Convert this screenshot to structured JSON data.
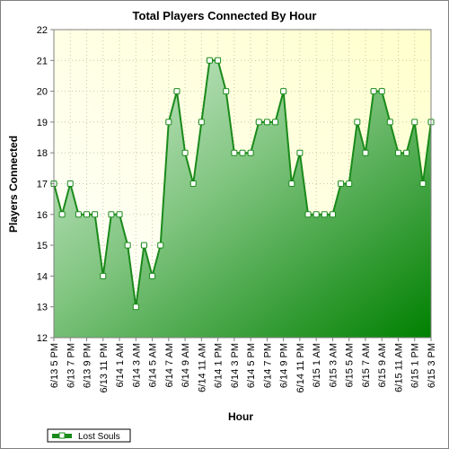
{
  "chart_data": {
    "type": "area",
    "title": "Total Players Connected By Hour",
    "xlabel": "Hour",
    "ylabel": "Players Connected",
    "ylim": [
      12,
      22
    ],
    "yticks": [
      12,
      13,
      14,
      15,
      16,
      17,
      18,
      19,
      20,
      21,
      22
    ],
    "grid": true,
    "legend": "bottom-left",
    "x_tick_labels": [
      "6/13 5 PM",
      "6/13 7 PM",
      "6/13 9 PM",
      "6/13 11 PM",
      "6/14 1 AM",
      "6/14 3 AM",
      "6/14 5 AM",
      "6/14 7 AM",
      "6/14 9 AM",
      "6/14 11 AM",
      "6/14 1 PM",
      "6/14 3 PM",
      "6/14 5 PM",
      "6/14 7 PM",
      "6/14 9 PM",
      "6/14 11 PM",
      "6/15 1 AM",
      "6/15 3 AM",
      "6/15 5 AM",
      "6/15 7 AM",
      "6/15 9 AM",
      "6/15 11 AM",
      "6/15 1 PM",
      "6/15 3 PM"
    ],
    "series": [
      {
        "name": "Lost Souls",
        "color": "#1a8a1a",
        "values": [
          17,
          16,
          17,
          16,
          16,
          16,
          14,
          16,
          16,
          15,
          13,
          15,
          14,
          15,
          19,
          20,
          18,
          17,
          19,
          21,
          21,
          20,
          18,
          18,
          18,
          19,
          19,
          19,
          20,
          17,
          18,
          16,
          16,
          16,
          16,
          17,
          17,
          19,
          18,
          20,
          20,
          19,
          18,
          18,
          19,
          17,
          19
        ]
      }
    ]
  }
}
